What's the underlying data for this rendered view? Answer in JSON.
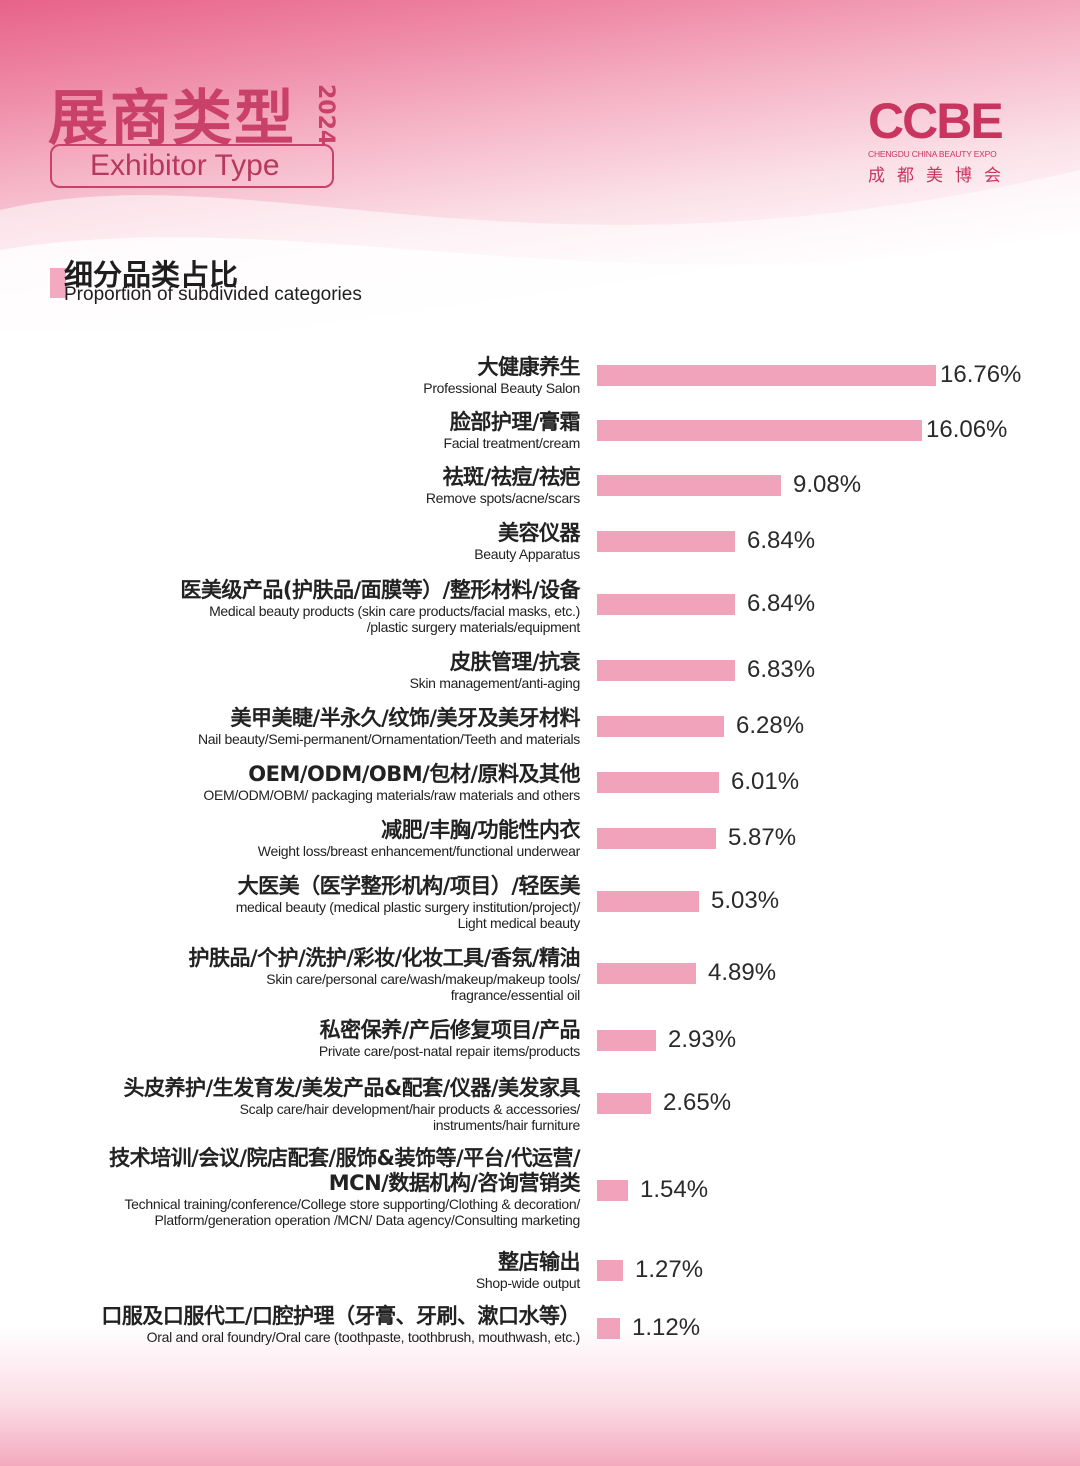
{
  "header": {
    "title_zh": "展商类型",
    "year": "2024",
    "title_en": "Exhibitor Type"
  },
  "logo": {
    "mark": "CCBE",
    "subtitle_en": "CHENGDU CHINA BEAUTY EXPO",
    "subtitle_zh": "成都美博会"
  },
  "section": {
    "title_zh": "细分品类占比",
    "title_en": "Proportion of subdivided categories"
  },
  "colors": {
    "brand": "#c94068",
    "bar": "#f1a3bb"
  },
  "chart_data": {
    "type": "bar",
    "orientation": "horizontal",
    "title": "细分品类占比",
    "subtitle": "Proportion of subdivided categories",
    "unit": "%",
    "xlim": [
      0,
      16.76
    ],
    "grid": false,
    "legend": "none",
    "items": [
      {
        "zh": "大健康养生",
        "en": [
          "Professional Beauty Salon"
        ],
        "value": 16.76,
        "label": "16.76%"
      },
      {
        "zh": "脸部护理/膏霜",
        "en": [
          "Facial treatment/cream"
        ],
        "value": 16.06,
        "label": "16.06%"
      },
      {
        "zh": "祛斑/祛痘/祛疤",
        "en": [
          "Remove spots/acne/scars"
        ],
        "value": 9.08,
        "label": "9.08%"
      },
      {
        "zh": "美容仪器",
        "en": [
          "Beauty Apparatus"
        ],
        "value": 6.84,
        "label": "6.84%"
      },
      {
        "zh": "医美级产品(护肤品/面膜等）/整形材料/设备",
        "en": [
          "Medical beauty products (skin care products/facial masks, etc.)",
          "/plastic surgery materials/equipment"
        ],
        "value": 6.84,
        "label": "6.84%"
      },
      {
        "zh": "皮肤管理/抗衰",
        "en": [
          "Skin management/anti-aging"
        ],
        "value": 6.83,
        "label": "6.83%"
      },
      {
        "zh": "美甲美睫/半永久/纹饰/美牙及美牙材料",
        "en": [
          "Nail beauty/Semi-permanent/Ornamentation/Teeth and materials"
        ],
        "value": 6.28,
        "label": "6.28%"
      },
      {
        "zh": "OEM/ODM/OBM/包材/原料及其他",
        "en": [
          "OEM/ODM/OBM/ packaging materials/raw materials and others"
        ],
        "value": 6.01,
        "label": "6.01%"
      },
      {
        "zh": "减肥/丰胸/功能性内衣",
        "en": [
          "Weight loss/breast enhancement/functional underwear"
        ],
        "value": 5.87,
        "label": "5.87%"
      },
      {
        "zh": "大医美（医学整形机构/项目）/轻医美",
        "en": [
          "medical beauty (medical plastic surgery institution/project)/",
          "Light medical beauty"
        ],
        "value": 5.03,
        "label": "5.03%"
      },
      {
        "zh": "护肤品/个护/洗护/彩妆/化妆工具/香氛/精油",
        "en": [
          "Skin care/personal care/wash/makeup/makeup tools/",
          "fragrance/essential oil"
        ],
        "value": 4.89,
        "label": "4.89%"
      },
      {
        "zh": "私密保养/产后修复项目/产品",
        "en": [
          "Private care/post-natal repair items/products"
        ],
        "value": 2.93,
        "label": "2.93%"
      },
      {
        "zh": "头皮养护/生发育发/美发产品&配套/仪器/美发家具",
        "en": [
          "Scalp care/hair development/hair products & accessories/",
          "instruments/hair furniture"
        ],
        "value": 2.65,
        "label": "2.65%"
      },
      {
        "zh": "技术培训/会议/院店配套/服饰&装饰等/平台/代运营/\nMCN/数据机构/咨询营销类",
        "en": [
          "Technical training/conference/College store supporting/Clothing & decoration/",
          "Platform/generation operation /MCN/ Data agency/Consulting marketing"
        ],
        "value": 1.54,
        "label": "1.54%"
      },
      {
        "zh": "整店输出",
        "en": [
          "Shop-wide output"
        ],
        "value": 1.27,
        "label": "1.27%"
      },
      {
        "zh": "口服及口服代工/口腔护理（牙膏、牙刷、漱口水等）",
        "en": [
          "Oral and oral foundry/Oral care (toothpaste, toothbrush, mouthwash, etc.)"
        ],
        "value": 1.12,
        "label": "1.12%"
      }
    ]
  }
}
